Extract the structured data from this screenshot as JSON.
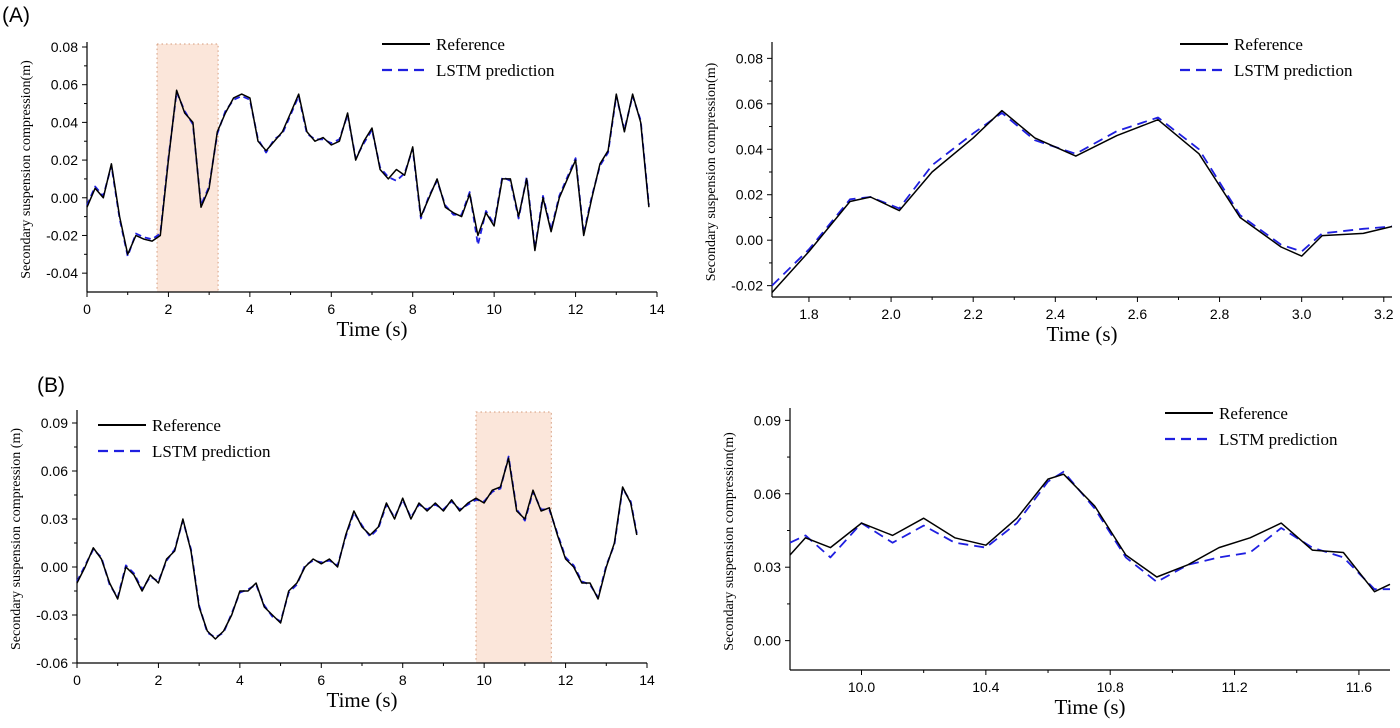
{
  "panel_labels": [
    "(A)",
    "(B)"
  ],
  "colors": {
    "reference": "#000000",
    "prediction": "#1f1fe0",
    "highlight": "#fbe6da",
    "highlight_border": "#d49a7a"
  },
  "chart_data": [
    {
      "id": "A-full",
      "type": "line",
      "xlabel": "Time (s)",
      "ylabel": "Secondary suspension compression(m)",
      "xlim": [
        0,
        14
      ],
      "ylim": [
        -0.05,
        0.08
      ],
      "xticks": [
        0,
        2,
        4,
        6,
        8,
        10,
        12,
        14
      ],
      "xtick_labels": [
        "0",
        "2",
        "4",
        "6",
        "8",
        "10",
        "12",
        "14"
      ],
      "yticks": [
        -0.04,
        -0.02,
        0.0,
        0.02,
        0.04,
        0.06,
        0.08
      ],
      "ytick_labels": [
        "-0.04",
        "-0.02",
        "0.00",
        "0.02",
        "0.04",
        "0.06",
        "0.08"
      ],
      "legend": [
        "Reference",
        "LSTM prediction"
      ],
      "legend_position": "top-right",
      "highlight": [
        1.72,
        3.22
      ],
      "x": [
        0,
        0.2,
        0.4,
        0.6,
        0.8,
        1.0,
        1.2,
        1.4,
        1.6,
        1.8,
        2.0,
        2.2,
        2.4,
        2.6,
        2.8,
        3.0,
        3.2,
        3.4,
        3.6,
        3.8,
        4.0,
        4.2,
        4.4,
        4.6,
        4.8,
        5.0,
        5.2,
        5.4,
        5.6,
        5.8,
        6.0,
        6.2,
        6.4,
        6.6,
        6.8,
        7.0,
        7.2,
        7.4,
        7.6,
        7.8,
        8.0,
        8.2,
        8.4,
        8.6,
        8.8,
        9.0,
        9.2,
        9.4,
        9.6,
        9.8,
        10.0,
        10.2,
        10.4,
        10.6,
        10.8,
        11.0,
        11.2,
        11.4,
        11.6,
        11.8,
        12.0,
        12.2,
        12.4,
        12.6,
        12.8,
        13.0,
        13.2,
        13.4,
        13.6,
        13.8
      ],
      "series": [
        {
          "name": "Reference",
          "style": "solid",
          "values": [
            -0.005,
            0.005,
            0.0,
            0.018,
            -0.01,
            -0.03,
            -0.02,
            -0.022,
            -0.023,
            -0.02,
            0.02,
            0.057,
            0.045,
            0.04,
            -0.005,
            0.005,
            0.035,
            0.045,
            0.053,
            0.055,
            0.053,
            0.03,
            0.025,
            0.03,
            0.035,
            0.045,
            0.055,
            0.035,
            0.03,
            0.032,
            0.028,
            0.03,
            0.045,
            0.02,
            0.03,
            0.037,
            0.015,
            0.01,
            0.015,
            0.012,
            0.027,
            -0.01,
            0.0,
            0.01,
            -0.005,
            -0.008,
            -0.01,
            0.002,
            -0.02,
            -0.008,
            -0.015,
            0.01,
            0.01,
            -0.01,
            0.01,
            -0.028,
            0.0,
            -0.018,
            0.0,
            0.01,
            0.02,
            -0.02,
            0.0,
            0.018,
            0.025,
            0.055,
            0.035,
            0.055,
            0.04,
            -0.005
          ]
        },
        {
          "name": "LSTM prediction",
          "style": "dashed",
          "values": [
            -0.004,
            0.006,
            0.001,
            0.017,
            -0.011,
            -0.031,
            -0.019,
            -0.021,
            -0.022,
            -0.019,
            0.021,
            0.056,
            0.046,
            0.039,
            -0.004,
            0.006,
            0.034,
            0.046,
            0.052,
            0.054,
            0.052,
            0.031,
            0.024,
            0.031,
            0.034,
            0.044,
            0.054,
            0.034,
            0.031,
            0.031,
            0.029,
            0.031,
            0.044,
            0.021,
            0.029,
            0.036,
            0.016,
            0.011,
            0.009,
            0.013,
            0.026,
            -0.011,
            0.001,
            0.009,
            -0.004,
            -0.009,
            -0.009,
            0.003,
            -0.025,
            -0.007,
            -0.014,
            0.011,
            0.009,
            -0.011,
            0.011,
            -0.027,
            0.001,
            -0.017,
            0.001,
            0.011,
            0.021,
            -0.019,
            0.001,
            0.017,
            0.024,
            0.054,
            0.036,
            0.054,
            0.041,
            -0.004
          ]
        }
      ]
    },
    {
      "id": "A-zoom",
      "type": "line",
      "xlabel": "Time (s)",
      "ylabel": "Secondary suspension compression(m)",
      "xlim": [
        1.71,
        3.22
      ],
      "ylim": [
        -0.025,
        0.085
      ],
      "xticks": [
        1.8,
        2.0,
        2.2,
        2.4,
        2.6,
        2.8,
        3.0,
        3.2
      ],
      "xtick_labels": [
        "1.8",
        "2.0",
        "2.2",
        "2.4",
        "2.6",
        "2.8",
        "3.0",
        "3.2"
      ],
      "yticks": [
        -0.02,
        0.0,
        0.02,
        0.04,
        0.06,
        0.08
      ],
      "ytick_labels": [
        "-0.02",
        "0.00",
        "0.02",
        "0.04",
        "0.06",
        "0.08"
      ],
      "legend": [
        "Reference",
        "LSTM prediction"
      ],
      "legend_position": "top-right",
      "x": [
        1.71,
        1.8,
        1.9,
        1.95,
        2.02,
        2.1,
        2.2,
        2.27,
        2.35,
        2.45,
        2.55,
        2.65,
        2.75,
        2.85,
        2.95,
        3.0,
        3.05,
        3.15,
        3.22
      ],
      "series": [
        {
          "name": "Reference",
          "style": "solid",
          "values": [
            -0.023,
            -0.005,
            0.017,
            0.019,
            0.013,
            0.03,
            0.045,
            0.057,
            0.045,
            0.037,
            0.046,
            0.053,
            0.038,
            0.01,
            -0.003,
            -0.007,
            0.002,
            0.003,
            0.006
          ]
        },
        {
          "name": "LSTM prediction",
          "style": "dashed",
          "values": [
            -0.02,
            -0.004,
            0.018,
            0.019,
            0.014,
            0.033,
            0.047,
            0.056,
            0.044,
            0.038,
            0.048,
            0.054,
            0.04,
            0.011,
            -0.002,
            -0.005,
            0.003,
            0.005,
            0.006
          ]
        }
      ]
    },
    {
      "id": "B-full",
      "type": "line",
      "xlabel": "Time (s)",
      "ylabel": "Secondary suspension compression (m)",
      "xlim": [
        0,
        14
      ],
      "ylim": [
        -0.06,
        0.095
      ],
      "xticks": [
        0,
        2,
        4,
        6,
        8,
        10,
        12,
        14
      ],
      "xtick_labels": [
        "0",
        "2",
        "4",
        "6",
        "8",
        "10",
        "12",
        "14"
      ],
      "yticks": [
        -0.06,
        -0.03,
        0.0,
        0.03,
        0.06,
        0.09
      ],
      "ytick_labels": [
        "-0.06",
        "-0.03",
        "0.00",
        "0.03",
        "0.06",
        "0.09"
      ],
      "legend": [
        "Reference",
        "LSTM prediction"
      ],
      "legend_position": "top-left",
      "highlight": [
        9.8,
        11.65
      ],
      "x": [
        0,
        0.2,
        0.4,
        0.6,
        0.8,
        1.0,
        1.2,
        1.4,
        1.6,
        1.8,
        2.0,
        2.2,
        2.4,
        2.6,
        2.8,
        3.0,
        3.2,
        3.4,
        3.6,
        3.8,
        4.0,
        4.2,
        4.4,
        4.6,
        4.8,
        5.0,
        5.2,
        5.4,
        5.6,
        5.8,
        6.0,
        6.2,
        6.4,
        6.6,
        6.8,
        7.0,
        7.2,
        7.4,
        7.6,
        7.8,
        8.0,
        8.2,
        8.4,
        8.6,
        8.8,
        9.0,
        9.2,
        9.4,
        9.6,
        9.8,
        10.0,
        10.2,
        10.4,
        10.6,
        10.8,
        11.0,
        11.2,
        11.4,
        11.6,
        11.8,
        12.0,
        12.2,
        12.4,
        12.6,
        12.8,
        13.0,
        13.2,
        13.4,
        13.6,
        13.75
      ],
      "series": [
        {
          "name": "Reference",
          "style": "solid",
          "values": [
            -0.01,
            0.0,
            0.012,
            0.005,
            -0.01,
            -0.02,
            0.0,
            -0.005,
            -0.015,
            -0.005,
            -0.01,
            0.005,
            0.01,
            0.03,
            0.01,
            -0.025,
            -0.04,
            -0.045,
            -0.04,
            -0.03,
            -0.015,
            -0.015,
            -0.01,
            -0.025,
            -0.03,
            -0.035,
            -0.015,
            -0.01,
            0.0,
            0.005,
            0.002,
            0.005,
            0.0,
            0.02,
            0.035,
            0.025,
            0.02,
            0.025,
            0.04,
            0.03,
            0.043,
            0.03,
            0.04,
            0.035,
            0.04,
            0.035,
            0.042,
            0.035,
            0.04,
            0.043,
            0.04,
            0.048,
            0.05,
            0.068,
            0.035,
            0.03,
            0.048,
            0.035,
            0.037,
            0.02,
            0.005,
            0.0,
            -0.01,
            -0.01,
            -0.02,
            0.0,
            0.015,
            0.05,
            0.04,
            0.02
          ]
        },
        {
          "name": "LSTM prediction",
          "style": "dashed",
          "values": [
            -0.009,
            0.001,
            0.011,
            0.006,
            -0.011,
            -0.019,
            0.001,
            -0.004,
            -0.014,
            -0.006,
            -0.009,
            0.004,
            0.011,
            0.029,
            0.011,
            -0.024,
            -0.041,
            -0.044,
            -0.041,
            -0.029,
            -0.016,
            -0.014,
            -0.011,
            -0.024,
            -0.031,
            -0.034,
            -0.016,
            -0.011,
            0.001,
            0.004,
            0.003,
            0.004,
            0.001,
            0.019,
            0.034,
            0.026,
            0.019,
            0.024,
            0.039,
            0.031,
            0.042,
            0.031,
            0.039,
            0.036,
            0.039,
            0.036,
            0.041,
            0.036,
            0.039,
            0.042,
            0.041,
            0.047,
            0.049,
            0.069,
            0.036,
            0.029,
            0.047,
            0.036,
            0.036,
            0.021,
            0.006,
            0.001,
            -0.009,
            -0.011,
            -0.019,
            0.001,
            0.014,
            0.049,
            0.041,
            0.021
          ]
        }
      ]
    },
    {
      "id": "B-zoom",
      "type": "line",
      "xlabel": "Time (s)",
      "ylabel": "Secondary suspension compression(m)",
      "xlim": [
        9.77,
        11.7
      ],
      "ylim": [
        -0.012,
        0.093
      ],
      "xticks": [
        10.0,
        10.4,
        10.8,
        11.2,
        11.6
      ],
      "xtick_labels": [
        "10.0",
        "10.4",
        "10.8",
        "11.2",
        "11.6"
      ],
      "yticks": [
        0.0,
        0.03,
        0.06,
        0.09
      ],
      "ytick_labels": [
        "0.00",
        "0.03",
        "0.06",
        "0.09"
      ],
      "legend": [
        "Reference",
        "LSTM prediction"
      ],
      "legend_position": "top-right",
      "x": [
        9.77,
        9.82,
        9.9,
        10.0,
        10.1,
        10.2,
        10.3,
        10.4,
        10.5,
        10.6,
        10.65,
        10.75,
        10.85,
        10.95,
        11.05,
        11.15,
        11.25,
        11.35,
        11.45,
        11.55,
        11.65,
        11.7
      ],
      "series": [
        {
          "name": "Reference",
          "style": "solid",
          "values": [
            0.035,
            0.042,
            0.038,
            0.048,
            0.043,
            0.05,
            0.042,
            0.039,
            0.05,
            0.066,
            0.068,
            0.055,
            0.035,
            0.026,
            0.031,
            0.038,
            0.042,
            0.048,
            0.037,
            0.036,
            0.02,
            0.023
          ]
        },
        {
          "name": "LSTM prediction",
          "style": "dashed",
          "values": [
            0.04,
            0.043,
            0.034,
            0.048,
            0.04,
            0.047,
            0.04,
            0.038,
            0.048,
            0.065,
            0.069,
            0.054,
            0.034,
            0.024,
            0.031,
            0.034,
            0.036,
            0.046,
            0.038,
            0.034,
            0.021,
            0.021
          ]
        }
      ]
    }
  ]
}
